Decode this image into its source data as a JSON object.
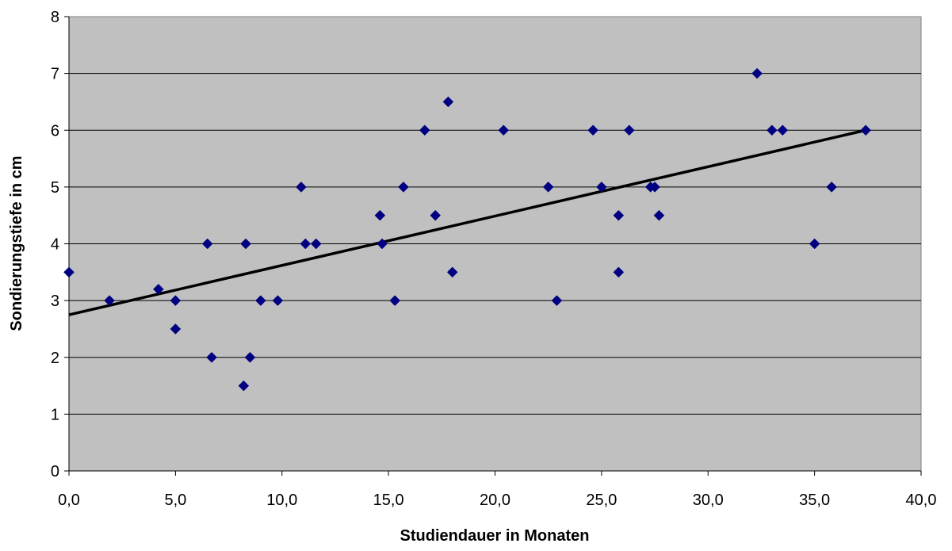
{
  "chart_data": {
    "type": "scatter",
    "title": "",
    "xlabel": "Studiendauer in Monaten",
    "ylabel": "Sondierungstiefe in cm",
    "xlim": [
      0,
      40
    ],
    "ylim": [
      0,
      8
    ],
    "x_ticks": [
      "0,0",
      "5,0",
      "10,0",
      "15,0",
      "20,0",
      "25,0",
      "30,0",
      "35,0",
      "40,0"
    ],
    "y_ticks": [
      "0",
      "1",
      "2",
      "3",
      "4",
      "5",
      "6",
      "7",
      "8"
    ],
    "grid": "horizontal",
    "colors": {
      "plot_background": "#c0c0c0",
      "marker": "#000080",
      "trendline": "#000000",
      "gridline": "#000000"
    },
    "marker_shape": "diamond",
    "points": [
      [
        0.0,
        3.5
      ],
      [
        1.9,
        3.0
      ],
      [
        4.2,
        3.2
      ],
      [
        5.0,
        3.0
      ],
      [
        5.0,
        2.5
      ],
      [
        6.5,
        4.0
      ],
      [
        6.7,
        2.0
      ],
      [
        8.2,
        1.5
      ],
      [
        8.3,
        4.0
      ],
      [
        8.5,
        2.0
      ],
      [
        9.0,
        3.0
      ],
      [
        9.8,
        3.0
      ],
      [
        10.9,
        5.0
      ],
      [
        11.1,
        4.0
      ],
      [
        11.6,
        4.0
      ],
      [
        14.6,
        4.5
      ],
      [
        14.7,
        4.0
      ],
      [
        15.3,
        3.0
      ],
      [
        15.7,
        5.0
      ],
      [
        16.7,
        6.0
      ],
      [
        17.2,
        4.5
      ],
      [
        17.8,
        6.5
      ],
      [
        18.0,
        3.5
      ],
      [
        20.4,
        6.0
      ],
      [
        22.5,
        5.0
      ],
      [
        22.9,
        3.0
      ],
      [
        24.6,
        6.0
      ],
      [
        25.0,
        5.0
      ],
      [
        25.8,
        4.5
      ],
      [
        25.8,
        3.5
      ],
      [
        26.3,
        6.0
      ],
      [
        27.3,
        5.0
      ],
      [
        27.5,
        5.0
      ],
      [
        27.7,
        4.5
      ],
      [
        32.3,
        7.0
      ],
      [
        33.0,
        6.0
      ],
      [
        33.5,
        6.0
      ],
      [
        35.0,
        4.0
      ],
      [
        35.8,
        5.0
      ],
      [
        37.4,
        6.0
      ]
    ],
    "trendline": {
      "type": "linear",
      "x": [
        0.0,
        37.4
      ],
      "y": [
        2.75,
        6.0
      ]
    }
  }
}
